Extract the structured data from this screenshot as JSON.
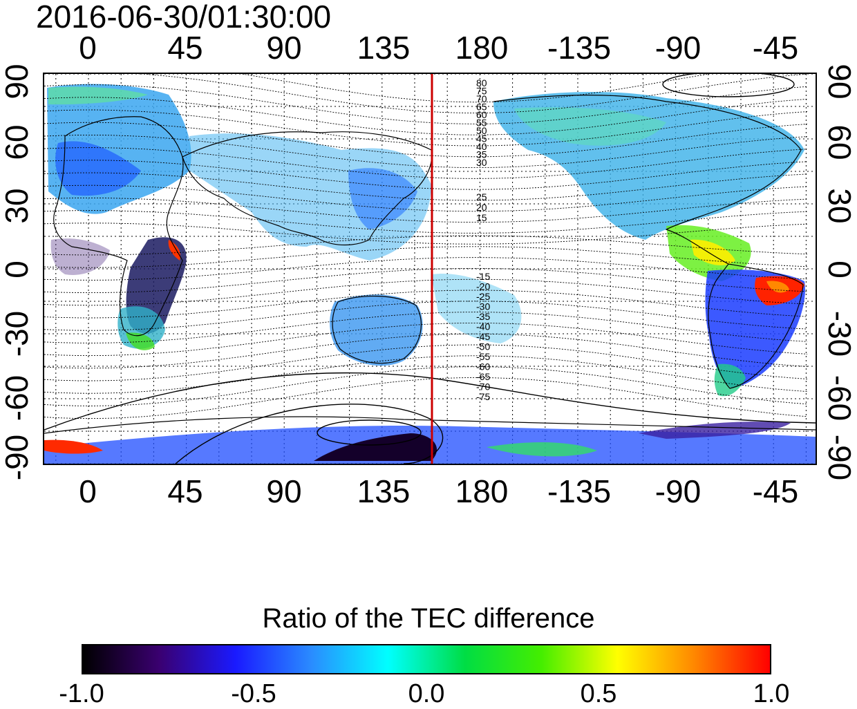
{
  "header": {
    "timestamp": "2016-06-30/01:30:00"
  },
  "map": {
    "x_ticks": [
      "0",
      "45",
      "90",
      "135",
      "180",
      "-135",
      "-90",
      "-45"
    ],
    "y_ticks": [
      "90",
      "60",
      "30",
      "0",
      "-30",
      "-60",
      "-90"
    ],
    "contour_labels_north": [
      "80",
      "75",
      "70",
      "65",
      "60",
      "55",
      "50",
      "45",
      "40",
      "35",
      "30",
      "25",
      "20",
      "15"
    ],
    "contour_labels_south": [
      "-15",
      "-20",
      "-25",
      "-30",
      "-35",
      "-40",
      "-45",
      "-50",
      "-55",
      "-60",
      "-65",
      "-70",
      "-75"
    ],
    "terminator_color": "#cc0000",
    "layers": [
      "TEC difference ratio pixels",
      "coastlines",
      "geomagnetic latitude contours",
      "grid",
      "red meridian line"
    ]
  },
  "colorbar": {
    "title": "Ratio of the TEC difference",
    "labels": [
      "-1.0",
      "-0.5",
      "0.0",
      "0.5",
      "1.0"
    ],
    "range": [
      -1.0,
      1.0
    ],
    "colormap": [
      "#000000",
      "#3a0070",
      "#1a1aff",
      "#2a8cff",
      "#00ffff",
      "#00dd44",
      "#44ee00",
      "#ffff00",
      "#ff8800",
      "#ff0000"
    ]
  }
}
